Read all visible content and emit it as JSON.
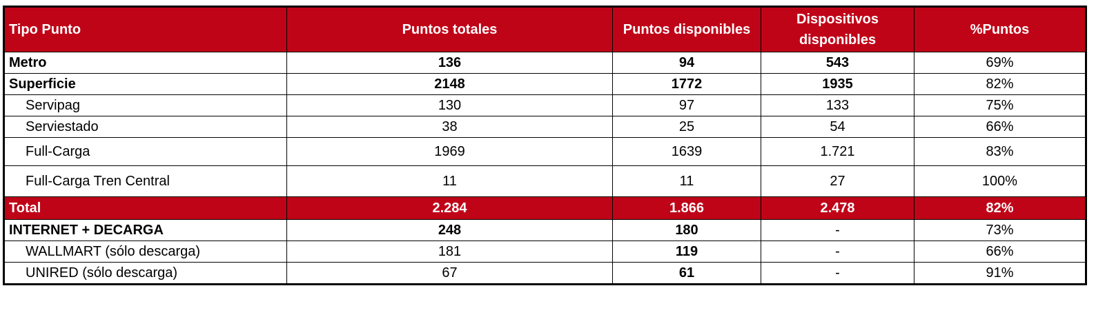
{
  "table": {
    "headers": [
      "Tipo Punto",
      "Puntos totales",
      "Puntos disponibles",
      "Dispositivos disponibles",
      "%Puntos"
    ],
    "rows": [
      {
        "name": "Metro",
        "total": "136",
        "disponibles": "94",
        "dispositivos": "543",
        "pct": "69%"
      },
      {
        "name": "Superficie",
        "total": "2148",
        "disponibles": "1772",
        "dispositivos": "1935",
        "pct": "82%"
      },
      {
        "name": "Servipag",
        "total": "130",
        "disponibles": "97",
        "dispositivos": "133",
        "pct": "75%"
      },
      {
        "name": "Serviestado",
        "total": "38",
        "disponibles": "25",
        "dispositivos": "54",
        "pct": "66%"
      },
      {
        "name": "Full-Carga",
        "total": "1969",
        "disponibles": "1639",
        "dispositivos": "1.721",
        "pct": "83%"
      },
      {
        "name": "Full-Carga Tren Central",
        "total": "11",
        "disponibles": "11",
        "dispositivos": "27",
        "pct": "100%"
      },
      {
        "name": "Total",
        "total": "2.284",
        "disponibles": "1.866",
        "dispositivos": "2.478",
        "pct": "82%"
      },
      {
        "name": "INTERNET + DECARGA",
        "total": "248",
        "disponibles": "180",
        "dispositivos": "-",
        "pct": "73%"
      },
      {
        "name": "WALLMART (sólo descarga)",
        "total": "181",
        "disponibles": "119",
        "dispositivos": "-",
        "pct": "66%"
      },
      {
        "name": "UNIRED (sólo descarga)",
        "total": "67",
        "disponibles": "61",
        "dispositivos": "-",
        "pct": "91%"
      }
    ]
  },
  "colors": {
    "header_bg": "#c00418",
    "header_text": "#ffffff",
    "border": "#000000"
  }
}
